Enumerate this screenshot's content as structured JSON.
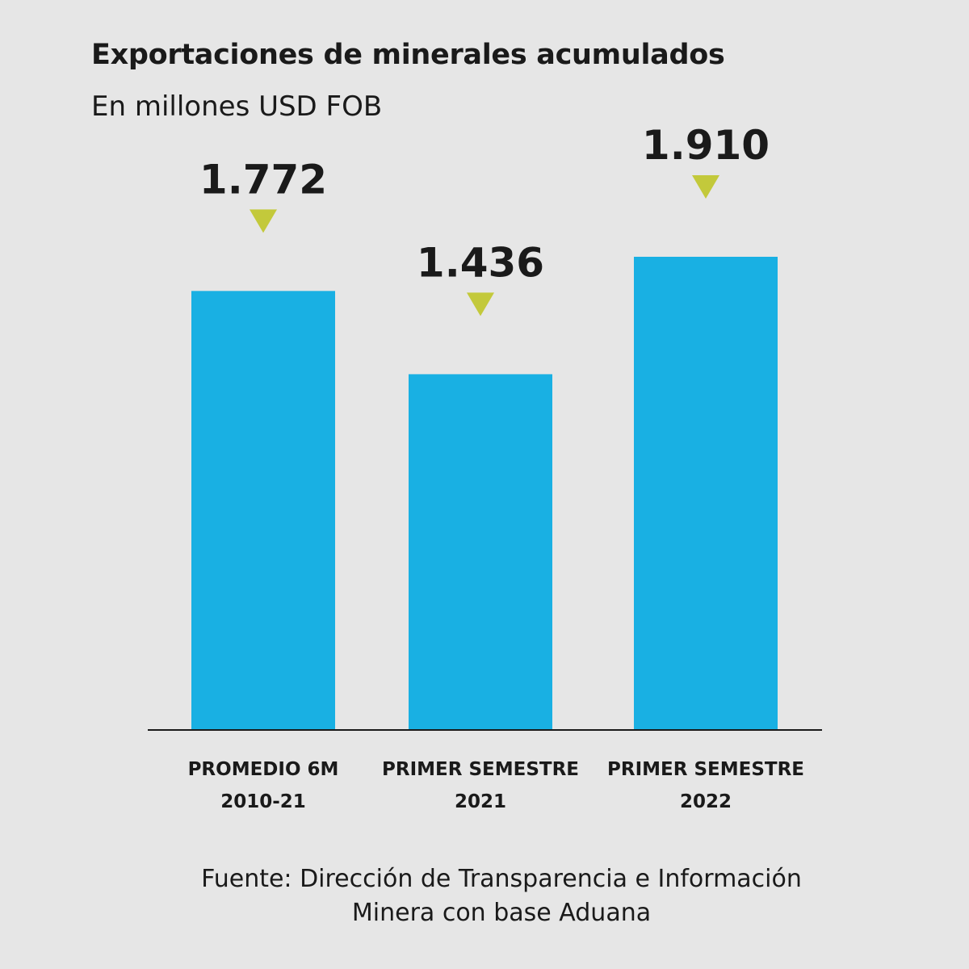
{
  "chart_data": {
    "type": "bar",
    "title": "Exportaciones de minerales acumulados",
    "subtitle": "En millones USD FOB",
    "categories": [
      [
        "PROMEDIO 6M",
        "2010-21"
      ],
      [
        "PRIMER SEMESTRE",
        "2021"
      ],
      [
        "PRIMER SEMESTRE",
        "2022"
      ]
    ],
    "values": [
      1772,
      1436,
      1910
    ],
    "value_labels": [
      "1.772",
      "1.436",
      "1.910"
    ],
    "ylim": [
      0,
      1910
    ],
    "grid": false,
    "legend": "none",
    "bar_color": "#19b0e3",
    "marker_color": "#c3c93b"
  },
  "source": {
    "line1": "Fuente: Dirección de Transparencia e Información",
    "line2": "Minera con base Aduana"
  },
  "colors": {
    "background": "#e6e6e6",
    "text": "#1a1a1a"
  }
}
